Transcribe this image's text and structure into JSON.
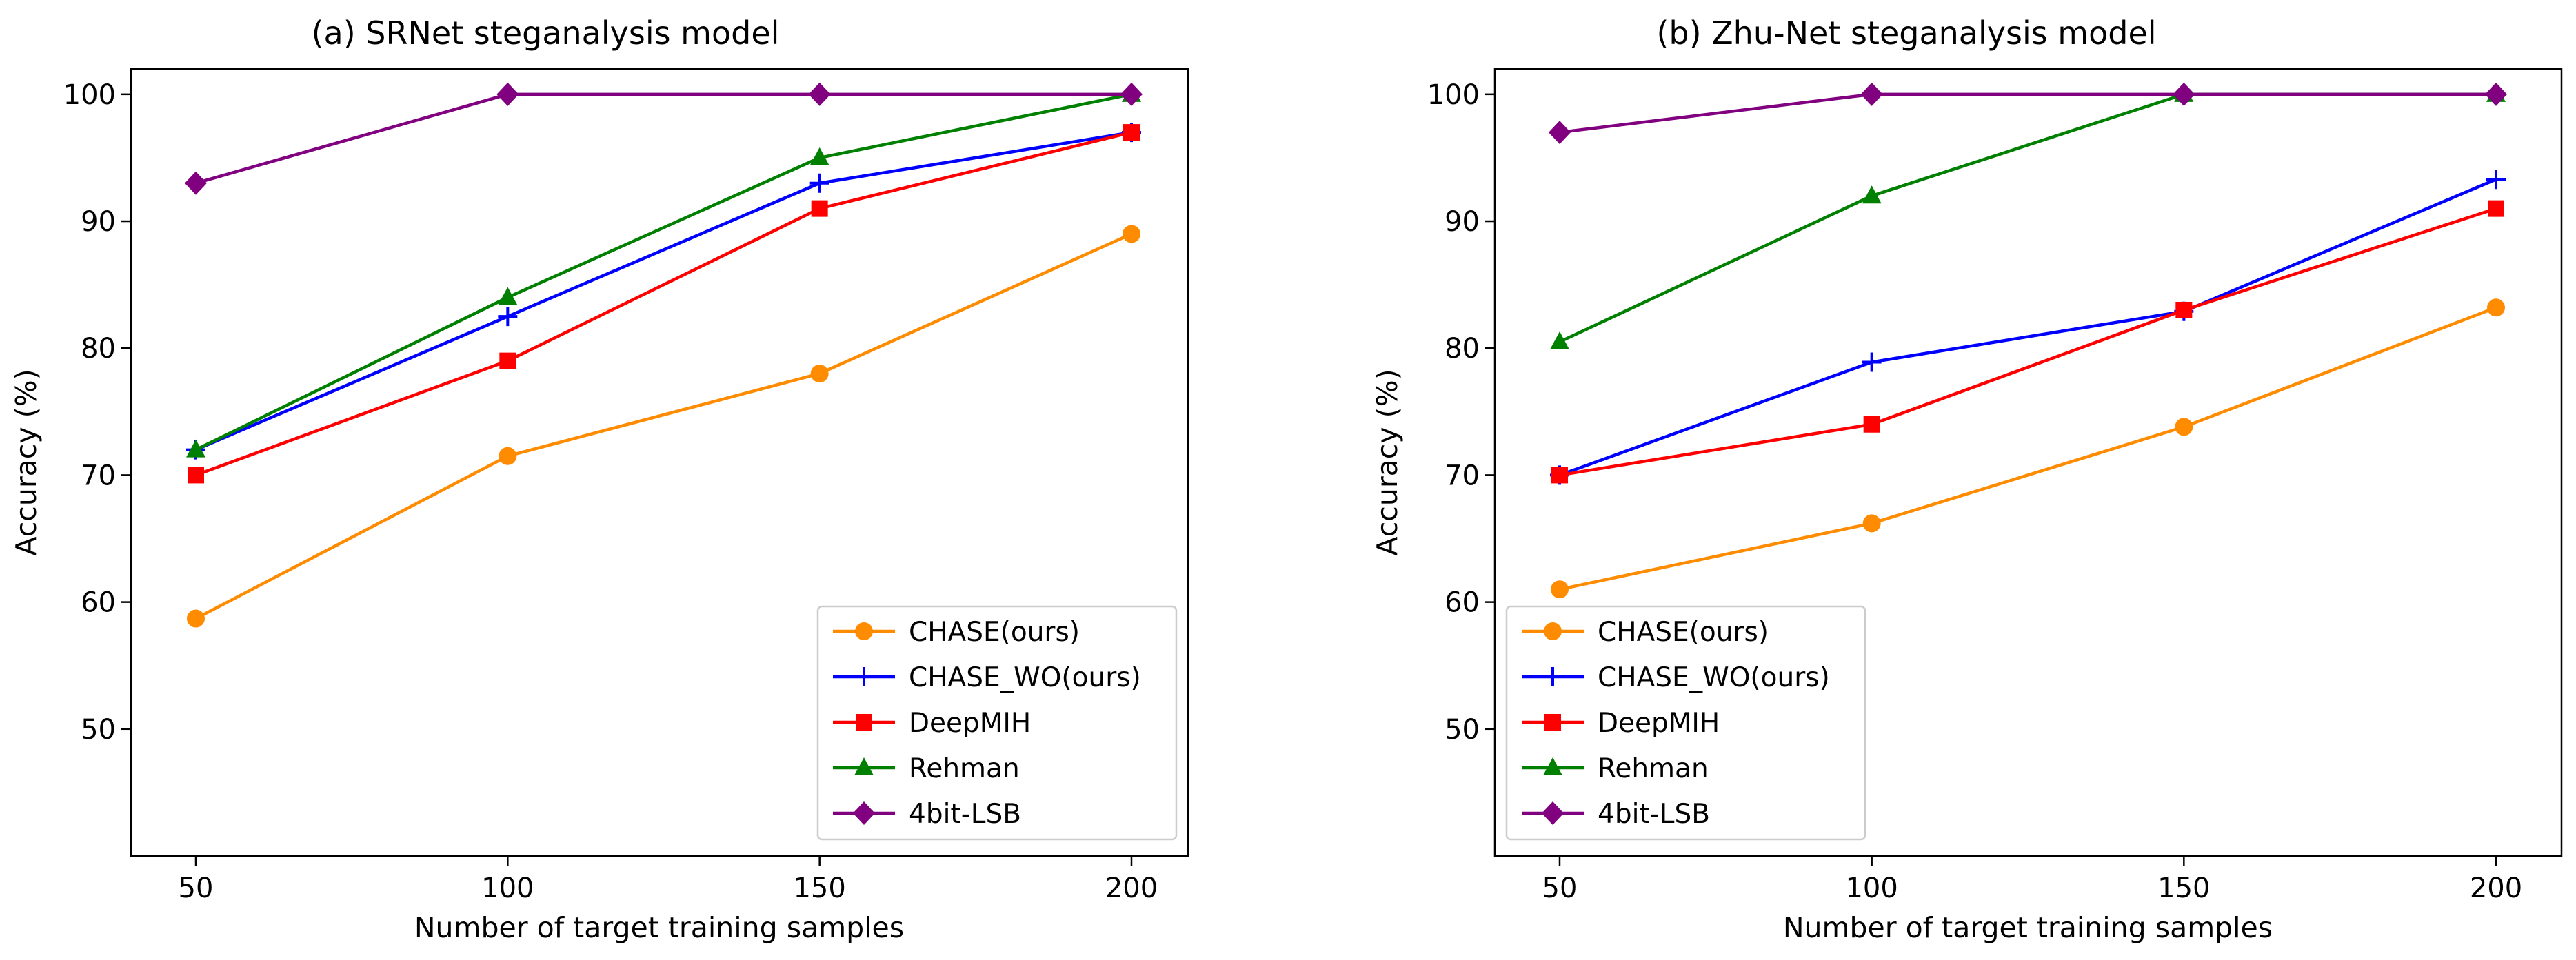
{
  "chart_data": [
    {
      "type": "line",
      "title": "(a) SRNet steganalysis model",
      "xlabel": "Number of target training samples",
      "ylabel": "Accuracy (%)",
      "x": [
        50,
        100,
        150,
        200
      ],
      "x_tick_labels": [
        "50",
        "100",
        "150",
        "200"
      ],
      "y_ticks": [
        50,
        60,
        70,
        80,
        90,
        100
      ],
      "y_tick_labels": [
        "50",
        "60",
        "70",
        "80",
        "90",
        "100"
      ],
      "ylim": [
        40,
        102
      ],
      "grid": false,
      "legend_position": "lower-right",
      "series": [
        {
          "name": "CHASE(ours)",
          "values": [
            58.7,
            71.5,
            78,
            89
          ],
          "color": "#ff8c00",
          "marker": "circle"
        },
        {
          "name": "CHASE_WO(ours)",
          "values": [
            72,
            82.5,
            93,
            97
          ],
          "color": "#0000ff",
          "marker": "plus"
        },
        {
          "name": "DeepMIH",
          "values": [
            70,
            79,
            91,
            97
          ],
          "color": "#ff0000",
          "marker": "square"
        },
        {
          "name": "Rehman",
          "values": [
            72,
            84,
            95,
            100
          ],
          "color": "#008000",
          "marker": "triangle"
        },
        {
          "name": "4bit-LSB",
          "values": [
            93,
            100,
            100,
            100
          ],
          "color": "#800080",
          "marker": "diamond"
        }
      ]
    },
    {
      "type": "line",
      "title": "(b) Zhu-Net steganalysis model",
      "xlabel": "Number of target training samples",
      "ylabel": "Accuracy (%)",
      "x": [
        50,
        100,
        150,
        200
      ],
      "x_tick_labels": [
        "50",
        "100",
        "150",
        "200"
      ],
      "y_ticks": [
        50,
        60,
        70,
        80,
        90,
        100
      ],
      "y_tick_labels": [
        "50",
        "60",
        "70",
        "80",
        "90",
        "100"
      ],
      "ylim": [
        40,
        102
      ],
      "grid": false,
      "legend_position": "lower-left",
      "series": [
        {
          "name": "CHASE(ours)",
          "values": [
            61,
            66.2,
            73.8,
            83.2
          ],
          "color": "#ff8c00",
          "marker": "circle"
        },
        {
          "name": "CHASE_WO(ours)",
          "values": [
            70,
            78.9,
            82.9,
            93.3
          ],
          "color": "#0000ff",
          "marker": "plus"
        },
        {
          "name": "DeepMIH",
          "values": [
            70,
            74,
            83,
            91
          ],
          "color": "#ff0000",
          "marker": "square"
        },
        {
          "name": "Rehman",
          "values": [
            80.5,
            92,
            100,
            100
          ],
          "color": "#008000",
          "marker": "triangle"
        },
        {
          "name": "4bit-LSB",
          "values": [
            97,
            100,
            100,
            100
          ],
          "color": "#800080",
          "marker": "diamond"
        }
      ]
    }
  ]
}
